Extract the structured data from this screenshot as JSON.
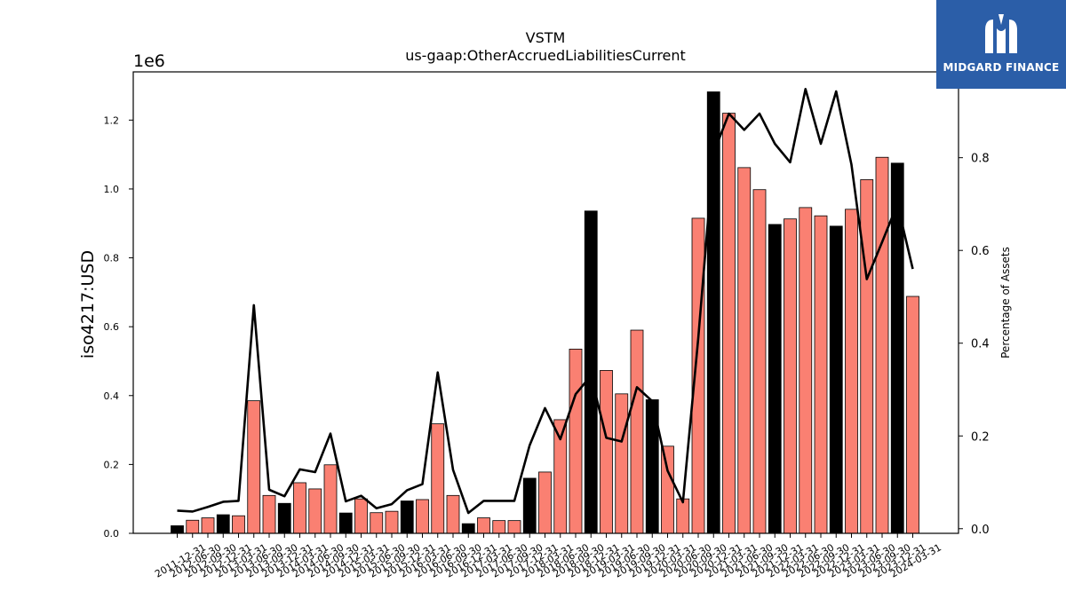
{
  "chart_data": {
    "type": "bar",
    "title": "VSTM",
    "subtitle": "us-gaap:OtherAccruedLiabilitiesCurrent",
    "ylabel": "iso4217:USD",
    "y_scale_label": "1e6",
    "y2label": "Percentage of Assets",
    "ylim": [
      0,
      1340000
    ],
    "y2lim": [
      -0.01,
      0.985
    ],
    "yticks": [
      "0.0",
      "0.2",
      "0.4",
      "0.6",
      "0.8",
      "1.0",
      "1.2"
    ],
    "y2ticks": [
      "0.0",
      "0.2",
      "0.4",
      "0.6",
      "0.8"
    ],
    "grid": false,
    "categories": [
      "2011-12-31",
      "2012-06-30",
      "2012-09-30",
      "2012-12-31",
      "2013-03-31",
      "2013-06-30",
      "2013-09-30",
      "2013-12-31",
      "2014-03-31",
      "2014-06-30",
      "2014-09-30",
      "2014-12-31",
      "2015-03-31",
      "2015-06-30",
      "2015-09-30",
      "2015-12-31",
      "2016-03-31",
      "2016-06-30",
      "2016-09-30",
      "2016-12-31",
      "2017-03-31",
      "2017-06-30",
      "2017-09-30",
      "2017-12-31",
      "2018-03-31",
      "2018-06-30",
      "2018-09-30",
      "2018-12-31",
      "2019-03-31",
      "2019-06-30",
      "2019-09-30",
      "2019-12-31",
      "2020-03-31",
      "2020-06-30",
      "2020-09-30",
      "2020-12-31",
      "2021-03-31",
      "2021-06-30",
      "2021-09-30",
      "2021-12-31",
      "2022-03-31",
      "2022-06-30",
      "2022-09-30",
      "2022-12-31",
      "2023-03-31",
      "2023-06-30",
      "2023-09-30",
      "2023-12-31",
      "2024-03-31"
    ],
    "series": [
      {
        "type": "bar",
        "values": [
          22000,
          38000,
          45000,
          54000,
          51000,
          385000,
          110000,
          87000,
          147000,
          129000,
          199000,
          59000,
          100000,
          60000,
          64000,
          94000,
          98000,
          318000,
          110000,
          28000,
          45000,
          37000,
          37000,
          160000,
          178000,
          330000,
          535000,
          936000,
          473000,
          405000,
          590000,
          388000,
          253000,
          100000,
          915000,
          1282000,
          1220000,
          1062000,
          998000,
          897000,
          913000,
          946000,
          922000,
          892000,
          941000,
          1027000,
          1092000,
          1075000,
          688000
        ],
        "colors": [
          "#000000",
          "#fa8072",
          "#fa8072",
          "#000000",
          "#fa8072",
          "#fa8072",
          "#fa8072",
          "#000000",
          "#fa8072",
          "#fa8072",
          "#fa8072",
          "#000000",
          "#fa8072",
          "#fa8072",
          "#fa8072",
          "#000000",
          "#fa8072",
          "#fa8072",
          "#fa8072",
          "#000000",
          "#fa8072",
          "#fa8072",
          "#fa8072",
          "#000000",
          "#fa8072",
          "#fa8072",
          "#fa8072",
          "#000000",
          "#fa8072",
          "#fa8072",
          "#fa8072",
          "#000000",
          "#fa8072",
          "#fa8072",
          "#fa8072",
          "#000000",
          "#fa8072",
          "#fa8072",
          "#fa8072",
          "#000000",
          "#fa8072",
          "#fa8072",
          "#fa8072",
          "#000000",
          "#fa8072",
          "#fa8072",
          "#fa8072",
          "#000000",
          "#fa8072"
        ]
      },
      {
        "type": "line",
        "axis": "right",
        "color": "#000000",
        "values": [
          0.039,
          0.037,
          0.047,
          0.058,
          0.06,
          0.482,
          0.084,
          0.07,
          0.128,
          0.122,
          0.205,
          0.059,
          0.071,
          0.044,
          0.053,
          0.083,
          0.096,
          0.337,
          0.127,
          0.034,
          0.06,
          0.06,
          0.06,
          0.18,
          0.26,
          0.193,
          0.29,
          0.33,
          0.196,
          0.188,
          0.305,
          0.275,
          0.125,
          0.057,
          0.41,
          0.81,
          0.895,
          0.86,
          0.895,
          0.83,
          0.79,
          0.948,
          0.83,
          0.943,
          0.785,
          0.538,
          0.618,
          0.7,
          0.56
        ]
      }
    ]
  },
  "logo": {
    "text": "MIDGARD FINANCE",
    "icon": "midgard-logo-icon",
    "background": "#2b5ea8"
  }
}
